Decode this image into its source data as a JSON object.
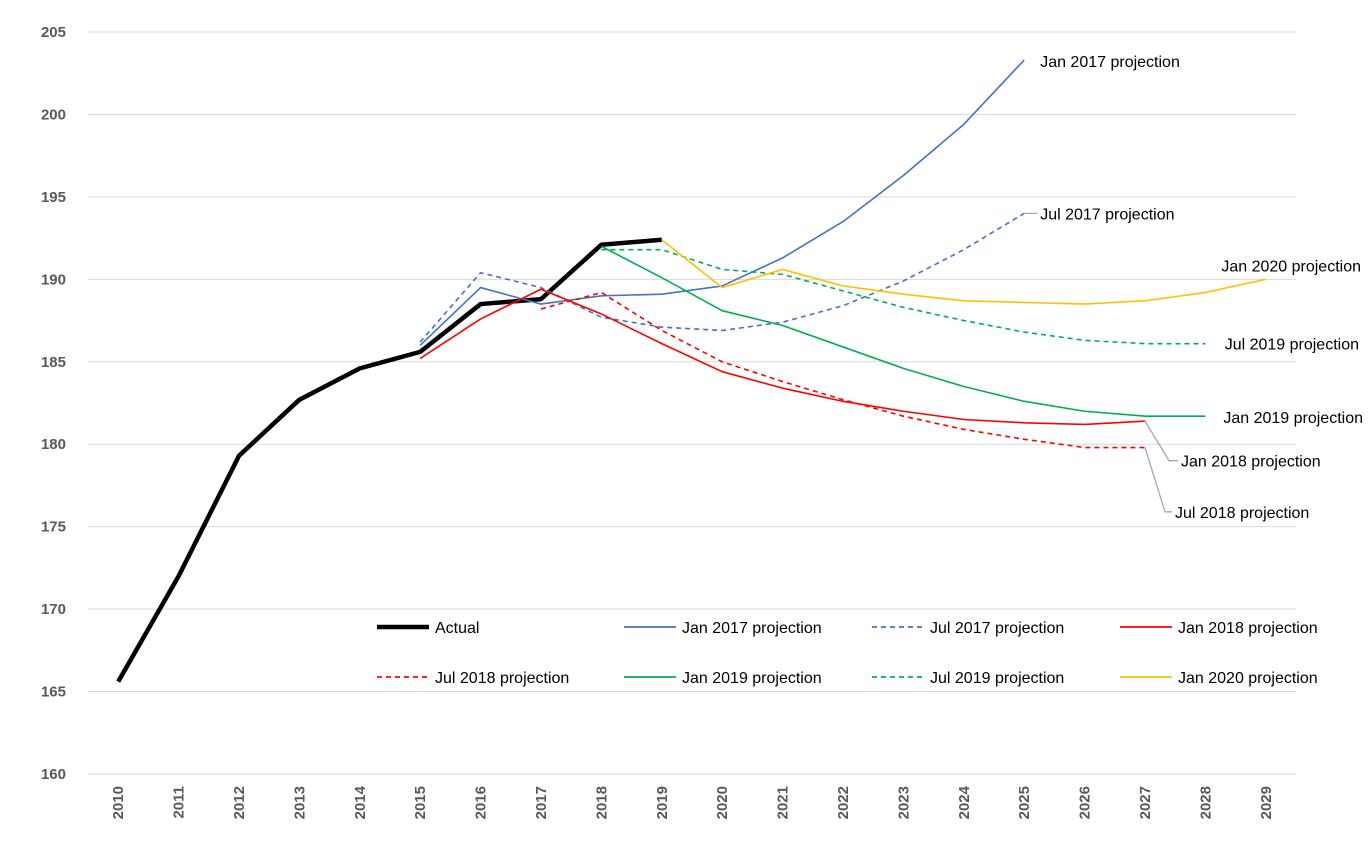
{
  "chart_data": {
    "type": "line",
    "title": "",
    "xlabel": "",
    "ylabel": "",
    "ylim": [
      160,
      205
    ],
    "yticks": [
      160,
      165,
      170,
      175,
      180,
      185,
      190,
      195,
      200,
      205
    ],
    "categories": [
      "2010",
      "2011",
      "2012",
      "2013",
      "2014",
      "2015",
      "2016",
      "2017",
      "2018",
      "2019",
      "2020",
      "2021",
      "2022",
      "2023",
      "2024",
      "2025",
      "2026",
      "2027",
      "2028",
      "2029"
    ],
    "grid": true,
    "legend_position": "lower-center",
    "series": [
      {
        "id": "actual",
        "name": "Actual",
        "color": "#000000",
        "dash": "solid",
        "width": 4.5,
        "x": [
          "2010",
          "2011",
          "2012",
          "2013",
          "2014",
          "2015",
          "2016",
          "2017",
          "2018",
          "2019"
        ],
        "values": [
          165.6,
          172.0,
          179.3,
          182.7,
          184.6,
          185.6,
          188.5,
          188.8,
          192.1,
          192.4
        ]
      },
      {
        "id": "jan2017",
        "name": "Jan 2017 projection",
        "color": "#4472c4",
        "dash": "solid",
        "width": 1.6,
        "x": [
          "2015",
          "2016",
          "2017",
          "2018",
          "2019",
          "2020",
          "2021",
          "2022",
          "2023",
          "2024",
          "2025"
        ],
        "values": [
          186.0,
          189.5,
          188.5,
          189.0,
          189.1,
          189.6,
          191.3,
          193.5,
          196.3,
          199.4,
          203.3
        ]
      },
      {
        "id": "jul2017",
        "name": "Jul 2017 projection",
        "color": "#4472c4",
        "dash": "dashed",
        "width": 1.6,
        "x": [
          "2015",
          "2016",
          "2017",
          "2018",
          "2019",
          "2020",
          "2021",
          "2022",
          "2023",
          "2024",
          "2025"
        ],
        "values": [
          186.2,
          190.4,
          189.5,
          187.7,
          187.1,
          186.9,
          187.4,
          188.4,
          189.9,
          191.8,
          194.0
        ]
      },
      {
        "id": "jan2018",
        "name": "Jan 2018 projection",
        "color": "#ff0000",
        "dash": "solid",
        "width": 1.6,
        "x": [
          "2015",
          "2016",
          "2017",
          "2018",
          "2019",
          "2020",
          "2021",
          "2022",
          "2023",
          "2024",
          "2025",
          "2026",
          "2027"
        ],
        "values": [
          185.2,
          187.6,
          189.4,
          187.9,
          186.1,
          184.4,
          183.4,
          182.6,
          182.0,
          181.5,
          181.3,
          181.2,
          181.4
        ]
      },
      {
        "id": "jul2018",
        "name": "Jul 2018 projection",
        "color": "#ff0000",
        "dash": "dashed",
        "width": 1.6,
        "x": [
          "2017",
          "2018",
          "2019",
          "2020",
          "2021",
          "2022",
          "2023",
          "2024",
          "2025",
          "2026",
          "2027"
        ],
        "values": [
          188.2,
          189.2,
          186.9,
          185.0,
          183.8,
          182.7,
          181.7,
          180.9,
          180.3,
          179.8,
          179.8
        ]
      },
      {
        "id": "jan2019",
        "name": "Jan 2019 projection",
        "color": "#00b050",
        "dash": "solid",
        "width": 1.6,
        "x": [
          "2018",
          "2019",
          "2020",
          "2021",
          "2022",
          "2023",
          "2024",
          "2025",
          "2026",
          "2027",
          "2028"
        ],
        "values": [
          192.0,
          190.1,
          188.1,
          187.2,
          185.9,
          184.6,
          183.5,
          182.6,
          182.0,
          181.7,
          181.7
        ]
      },
      {
        "id": "jul2019",
        "name": "Jul 2019 projection",
        "color": "#00b050",
        "dash": "dashed",
        "width": 1.6,
        "x": [
          "2018",
          "2019",
          "2020",
          "2021",
          "2022",
          "2023",
          "2024",
          "2025",
          "2026",
          "2027",
          "2028"
        ],
        "values": [
          191.8,
          191.8,
          190.6,
          190.3,
          189.3,
          188.3,
          187.5,
          186.8,
          186.3,
          186.1,
          186.1
        ]
      },
      {
        "id": "jan2020",
        "name": "Jan 2020 projection",
        "color": "#ffc000",
        "dash": "solid",
        "width": 1.6,
        "x": [
          "2019",
          "2020",
          "2021",
          "2022",
          "2023",
          "2024",
          "2025",
          "2026",
          "2027",
          "2028",
          "2029"
        ],
        "values": [
          192.4,
          189.5,
          190.6,
          189.6,
          189.1,
          188.7,
          188.6,
          188.5,
          188.7,
          189.2,
          190.0
        ]
      }
    ],
    "annotations": [
      {
        "series": "jan2017",
        "text": "Jan 2017 projection"
      },
      {
        "series": "jul2017",
        "text": "Jul 2017 projection"
      },
      {
        "series": "jan2020",
        "text": "Jan 2020 projection"
      },
      {
        "series": "jul2019",
        "text": "Jul 2019 projection"
      },
      {
        "series": "jan2019",
        "text": "Jan 2019 projection"
      },
      {
        "series": "jan2018",
        "text": "Jan 2018 projection"
      },
      {
        "series": "jul2018",
        "text": "Jul 2018 projection"
      }
    ],
    "leader_line_color": "#a6a6a6"
  }
}
